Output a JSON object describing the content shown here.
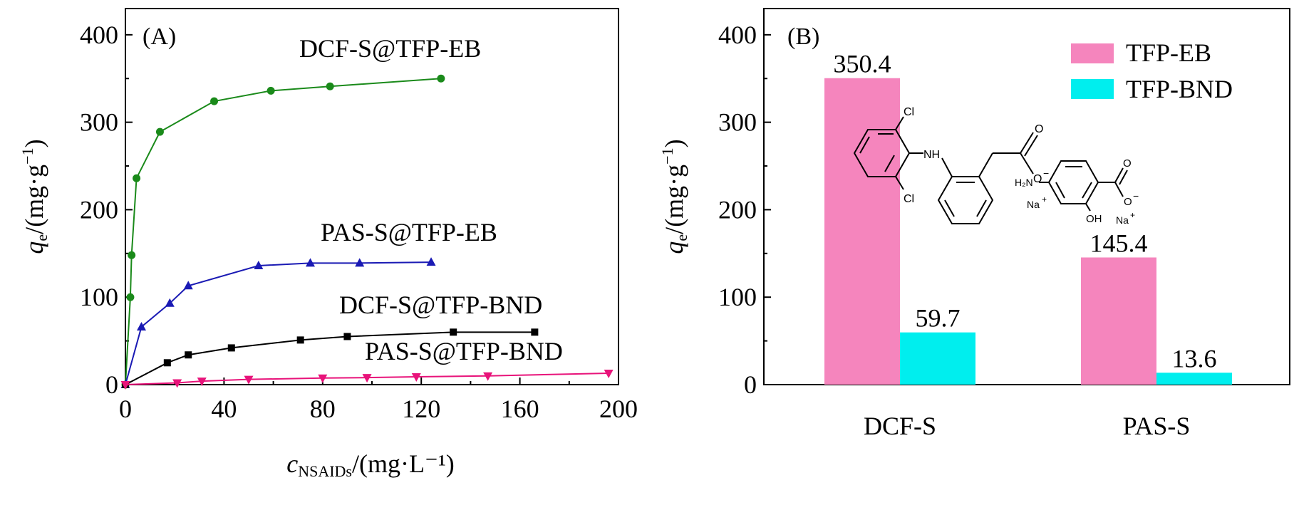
{
  "colors": {
    "green": "#1a8a1a",
    "blue": "#1a1ab4",
    "black": "#000000",
    "magenta": "#e8137a",
    "pink": "#f585bd",
    "cyan": "#00eeee",
    "red_atom": "#ff0000"
  },
  "chart_data": [
    {
      "type": "line",
      "panel_label": "(A)",
      "xlabel": "c",
      "xlabel_sub": "NSAIDs",
      "xlabel_unit": "/(mg·L⁻¹)",
      "ylabel": "q",
      "ylabel_sub": "e",
      "ylabel_unit": "/(mg·g",
      "ylabel_sup": "−1",
      "ylabel_close": ")",
      "xlim": [
        0,
        200
      ],
      "ylim": [
        0,
        430
      ],
      "xticks": [
        0,
        40,
        80,
        120,
        160,
        200
      ],
      "yticks": [
        0,
        100,
        200,
        300,
        400
      ],
      "series": [
        {
          "name": "DCF-S@TFP-EB",
          "color": "#1a8a1a",
          "marker": "circle",
          "x": [
            0,
            2.0,
            2.5,
            4.5,
            14.0,
            36.0,
            59.0,
            83.0,
            128.0
          ],
          "y": [
            0,
            100,
            148,
            236,
            289,
            324,
            336,
            341,
            350
          ]
        },
        {
          "name": "PAS-S@TFP-EB",
          "color": "#1a1ab4",
          "marker": "triangle-up",
          "x": [
            0,
            6.5,
            18.0,
            25.5,
            54.0,
            75.0,
            95.0,
            124.0
          ],
          "y": [
            0,
            66,
            93,
            113,
            136,
            139,
            139,
            140
          ]
        },
        {
          "name": "DCF-S@TFP-BND",
          "color": "#000000",
          "marker": "square",
          "x": [
            0,
            17.0,
            25.5,
            43.0,
            71.0,
            90.0,
            133.0,
            166.0
          ],
          "y": [
            0,
            25,
            34,
            42,
            51,
            55,
            60,
            60
          ]
        },
        {
          "name": "PAS-S@TFP-BND",
          "color": "#e8137a",
          "marker": "triangle-down",
          "x": [
            0,
            21.0,
            31.0,
            50.0,
            80.0,
            98.0,
            118.0,
            147.0,
            196.0
          ],
          "y": [
            0,
            2,
            4,
            6,
            7.5,
            8,
            9,
            10,
            13
          ]
        }
      ]
    },
    {
      "type": "bar",
      "panel_label": "(B)",
      "categories": [
        "DCF-S",
        "PAS-S"
      ],
      "ylabel": "q",
      "ylabel_sub": "e",
      "ylabel_unit": "/(mg·g",
      "ylabel_sup": "−1",
      "ylabel_close": ")",
      "ylim": [
        0,
        430
      ],
      "yticks": [
        0,
        100,
        200,
        300,
        400
      ],
      "series": [
        {
          "name": "TFP-EB",
          "color": "#f585bd",
          "values": [
            350.4,
            145.4
          ],
          "labels": [
            "350.4",
            "145.4"
          ]
        },
        {
          "name": "TFP-BND",
          "color": "#00eeee",
          "values": [
            59.7,
            13.6
          ],
          "labels": [
            "59.7",
            "13.6"
          ]
        }
      ]
    }
  ],
  "structures": {
    "dcf": {
      "cl_top": "Cl",
      "cl_bottom": "Cl",
      "nh": "NH",
      "o_double": "O",
      "o_minus": "O",
      "minus": "−",
      "na": "Na",
      "plus": "+"
    },
    "pas": {
      "h2n": "H₂N",
      "oh": "OH",
      "o_double": "O",
      "o_minus": "O",
      "minus": "−",
      "na": "Na",
      "plus": "+"
    }
  }
}
